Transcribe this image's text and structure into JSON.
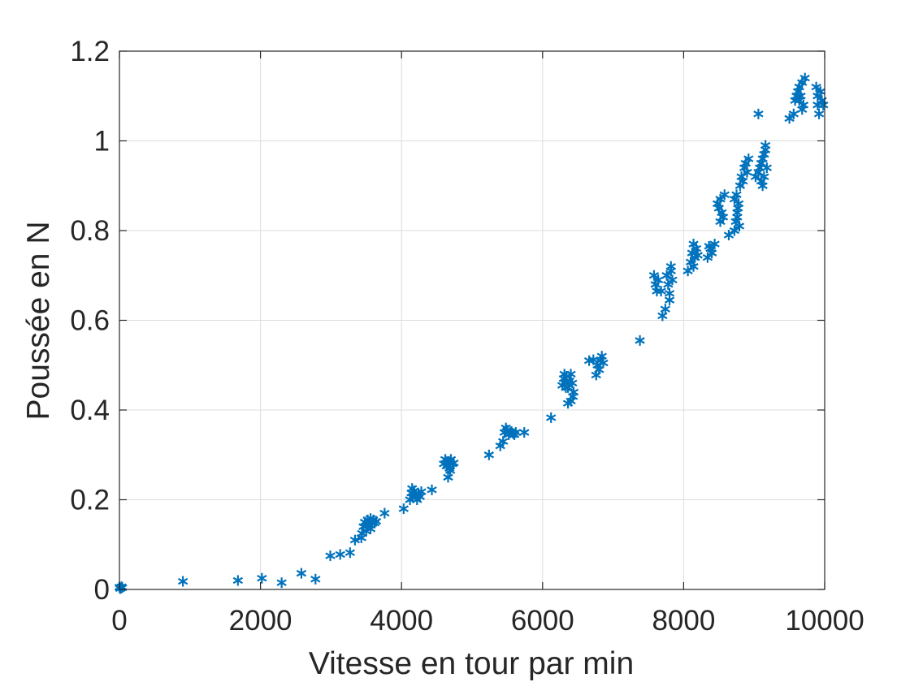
{
  "chart_data": {
    "type": "scatter",
    "title": "",
    "xlabel": "Vitesse en tour par min",
    "ylabel": "Poussée en N",
    "xlim": [
      0,
      10000
    ],
    "ylim": [
      0,
      1.2
    ],
    "xticks": [
      0,
      2000,
      4000,
      6000,
      8000,
      10000
    ],
    "yticks": [
      0,
      0.2,
      0.4,
      0.6,
      0.8,
      1,
      1.2
    ],
    "xtick_labels": [
      "0",
      "2000",
      "4000",
      "6000",
      "8000",
      "10000"
    ],
    "ytick_labels": [
      "0",
      "0.2",
      "0.4",
      "0.6",
      "0.8",
      "1",
      "1.2"
    ],
    "grid": true,
    "marker": "asterisk",
    "color": "#0072bd",
    "series": [
      {
        "points": [
          [
            0,
            0.005
          ],
          [
            20,
            0.003
          ],
          [
            30,
            0.006
          ],
          [
            10,
            0.002
          ],
          [
            40,
            0.004
          ],
          [
            900,
            0.018
          ],
          [
            1680,
            0.02
          ],
          [
            2020,
            0.025
          ],
          [
            2300,
            0.015
          ],
          [
            2580,
            0.036
          ],
          [
            2780,
            0.023
          ],
          [
            2990,
            0.075
          ],
          [
            3130,
            0.078
          ],
          [
            3270,
            0.082
          ],
          [
            3340,
            0.11
          ],
          [
            3430,
            0.115
          ],
          [
            3440,
            0.125
          ],
          [
            3460,
            0.14
          ],
          [
            3480,
            0.15
          ],
          [
            3500,
            0.13
          ],
          [
            3520,
            0.155
          ],
          [
            3540,
            0.145
          ],
          [
            3560,
            0.135
          ],
          [
            3580,
            0.15
          ],
          [
            3600,
            0.155
          ],
          [
            3620,
            0.148
          ],
          [
            3640,
            0.152
          ],
          [
            3500,
            0.142
          ],
          [
            3560,
            0.158
          ],
          [
            3760,
            0.17
          ],
          [
            4030,
            0.18
          ],
          [
            4120,
            0.2
          ],
          [
            4140,
            0.215
          ],
          [
            4160,
            0.205
          ],
          [
            4180,
            0.22
          ],
          [
            4200,
            0.21
          ],
          [
            4220,
            0.2
          ],
          [
            4240,
            0.213
          ],
          [
            4260,
            0.207
          ],
          [
            4280,
            0.218
          ],
          [
            4150,
            0.225
          ],
          [
            4430,
            0.222
          ],
          [
            4600,
            0.28
          ],
          [
            4620,
            0.29
          ],
          [
            4640,
            0.275
          ],
          [
            4660,
            0.285
          ],
          [
            4680,
            0.27
          ],
          [
            4700,
            0.29
          ],
          [
            4720,
            0.28
          ],
          [
            4690,
            0.265
          ],
          [
            4660,
            0.25
          ],
          [
            4740,
            0.282
          ],
          [
            5240,
            0.3
          ],
          [
            5400,
            0.32
          ],
          [
            5440,
            0.33
          ],
          [
            5460,
            0.35
          ],
          [
            5480,
            0.36
          ],
          [
            5500,
            0.355
          ],
          [
            5520,
            0.345
          ],
          [
            5540,
            0.35
          ],
          [
            5560,
            0.352
          ],
          [
            5580,
            0.348
          ],
          [
            5600,
            0.345
          ],
          [
            5620,
            0.35
          ],
          [
            5740,
            0.35
          ],
          [
            6120,
            0.383
          ],
          [
            6280,
            0.455
          ],
          [
            6300,
            0.47
          ],
          [
            6320,
            0.46
          ],
          [
            6340,
            0.475
          ],
          [
            6360,
            0.45
          ],
          [
            6380,
            0.465
          ],
          [
            6400,
            0.48
          ],
          [
            6420,
            0.46
          ],
          [
            6440,
            0.44
          ],
          [
            6360,
            0.415
          ],
          [
            6400,
            0.42
          ],
          [
            6430,
            0.43
          ],
          [
            6330,
            0.45
          ],
          [
            6310,
            0.48
          ],
          [
            6660,
            0.51
          ],
          [
            6720,
            0.512
          ],
          [
            6760,
            0.478
          ],
          [
            6800,
            0.49
          ],
          [
            6820,
            0.51
          ],
          [
            6840,
            0.52
          ],
          [
            6860,
            0.505
          ],
          [
            6780,
            0.5
          ],
          [
            7380,
            0.555
          ],
          [
            7580,
            0.7
          ],
          [
            7600,
            0.68
          ],
          [
            7620,
            0.665
          ],
          [
            7640,
            0.69
          ],
          [
            7700,
            0.61
          ],
          [
            7740,
            0.625
          ],
          [
            7760,
            0.7
          ],
          [
            7780,
            0.68
          ],
          [
            7800,
            0.66
          ],
          [
            7820,
            0.71
          ],
          [
            7840,
            0.69
          ],
          [
            7800,
            0.645
          ],
          [
            7680,
            0.665
          ],
          [
            7820,
            0.72
          ],
          [
            8060,
            0.71
          ],
          [
            8100,
            0.73
          ],
          [
            8120,
            0.75
          ],
          [
            8140,
            0.77
          ],
          [
            8160,
            0.74
          ],
          [
            8180,
            0.76
          ],
          [
            8200,
            0.745
          ],
          [
            8140,
            0.72
          ],
          [
            8340,
            0.74
          ],
          [
            8360,
            0.765
          ],
          [
            8380,
            0.76
          ],
          [
            8400,
            0.75
          ],
          [
            8440,
            0.77
          ],
          [
            8480,
            0.86
          ],
          [
            8500,
            0.85
          ],
          [
            8520,
            0.87
          ],
          [
            8540,
            0.84
          ],
          [
            8560,
            0.83
          ],
          [
            8580,
            0.88
          ],
          [
            8520,
            0.82
          ],
          [
            8640,
            0.79
          ],
          [
            8720,
            0.8
          ],
          [
            8740,
            0.82
          ],
          [
            8760,
            0.84
          ],
          [
            8780,
            0.86
          ],
          [
            8720,
            0.87
          ],
          [
            8750,
            0.88
          ],
          [
            8770,
            0.85
          ],
          [
            8790,
            0.81
          ],
          [
            8800,
            0.9
          ],
          [
            8760,
            0.83
          ],
          [
            8820,
            0.92
          ],
          [
            8860,
            0.94
          ],
          [
            8880,
            0.95
          ],
          [
            8900,
            0.93
          ],
          [
            8920,
            0.96
          ],
          [
            8840,
            0.91
          ],
          [
            9060,
            1.06
          ],
          [
            9060,
            0.93
          ],
          [
            9080,
            0.94
          ],
          [
            9100,
            0.95
          ],
          [
            9120,
            0.96
          ],
          [
            9140,
            0.97
          ],
          [
            9160,
            0.98
          ],
          [
            9100,
            0.91
          ],
          [
            9140,
            0.92
          ],
          [
            9160,
            0.99
          ],
          [
            9180,
            0.94
          ],
          [
            9020,
            0.92
          ],
          [
            9120,
            0.9
          ],
          [
            9500,
            1.05
          ],
          [
            9560,
            1.06
          ],
          [
            9580,
            1.09
          ],
          [
            9600,
            1.1
          ],
          [
            9620,
            1.11
          ],
          [
            9640,
            1.12
          ],
          [
            9660,
            1.1
          ],
          [
            9680,
            1.13
          ],
          [
            9700,
            1.08
          ],
          [
            9720,
            1.14
          ],
          [
            9640,
            1.09
          ],
          [
            9680,
            1.07
          ],
          [
            9880,
            1.12
          ],
          [
            9900,
            1.08
          ],
          [
            9920,
            1.06
          ],
          [
            9940,
            1.11
          ],
          [
            9960,
            1.09
          ],
          [
            9980,
            1.08
          ],
          [
            9900,
            1.1
          ]
        ]
      }
    ]
  }
}
